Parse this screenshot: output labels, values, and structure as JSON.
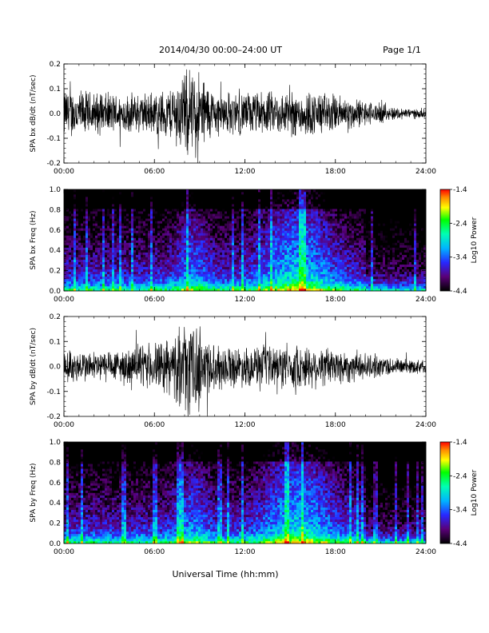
{
  "header": {
    "title": "2014/04/30  00:00–24:00 UT",
    "page": "Page 1/1"
  },
  "footer": {
    "xlabel": "Universal Time (hh:mm)"
  },
  "chart_data": [
    {
      "type": "line",
      "ylabel": "SPA bx dB/dt (nT/sec)",
      "x_ticks": [
        "00:00",
        "06:00",
        "12:00",
        "18:00",
        "24:00"
      ],
      "xlim": [
        0,
        24
      ],
      "y_ticks": [
        "0.2",
        "0.1",
        "0.0",
        "-0.1",
        "-0.2"
      ],
      "ylim": [
        -0.2,
        0.2
      ],
      "envelope_hours": [
        0,
        2,
        4,
        6,
        7,
        8,
        8.5,
        9,
        9.5,
        10,
        12,
        14,
        16,
        18,
        20,
        22,
        24
      ],
      "envelope_amplitude": [
        0.12,
        0.1,
        0.09,
        0.1,
        0.12,
        0.2,
        0.2,
        0.2,
        0.15,
        0.1,
        0.1,
        0.1,
        0.11,
        0.09,
        0.06,
        0.03,
        0.02
      ]
    },
    {
      "type": "heatmap",
      "ylabel": "SPA bx Freq (Hz)",
      "x_ticks": [
        "00:00",
        "06:00",
        "12:00",
        "18:00",
        "24:00"
      ],
      "xlim": [
        0,
        24
      ],
      "y_ticks": [
        "1.0",
        "0.8",
        "0.6",
        "0.4",
        "0.2",
        "0.0"
      ],
      "ylim": [
        0,
        1
      ],
      "colorbar": {
        "label": "Log10 Power",
        "ticks": [
          "-1.4",
          "-2.4",
          "-3.4",
          "-4.4"
        ],
        "range": [
          -4.4,
          -1.4
        ]
      }
    },
    {
      "type": "line",
      "ylabel": "SPA by dB/dt (nT/sec)",
      "x_ticks": [
        "00:00",
        "06:00",
        "12:00",
        "18:00",
        "24:00"
      ],
      "xlim": [
        0,
        24
      ],
      "y_ticks": [
        "0.2",
        "0.1",
        "0.0",
        "-0.1",
        "-0.2"
      ],
      "ylim": [
        -0.2,
        0.2
      ],
      "envelope_hours": [
        0,
        2,
        4,
        6,
        7,
        8,
        8.5,
        9,
        9.5,
        10,
        12,
        14,
        16,
        18,
        20,
        22,
        24
      ],
      "envelope_amplitude": [
        0.08,
        0.07,
        0.08,
        0.11,
        0.13,
        0.2,
        0.2,
        0.2,
        0.15,
        0.1,
        0.09,
        0.1,
        0.1,
        0.09,
        0.06,
        0.04,
        0.03
      ]
    },
    {
      "type": "heatmap",
      "ylabel": "SPA by Freq (Hz)",
      "x_ticks": [
        "00:00",
        "06:00",
        "12:00",
        "18:00",
        "24:00"
      ],
      "xlim": [
        0,
        24
      ],
      "y_ticks": [
        "1.0",
        "0.8",
        "0.6",
        "0.4",
        "0.2",
        "0.0"
      ],
      "ylim": [
        0,
        1
      ],
      "colorbar": {
        "label": "Log10 Power",
        "ticks": [
          "-1.4",
          "-2.4",
          "-3.4",
          "-4.4"
        ],
        "range": [
          -4.4,
          -1.4
        ]
      }
    }
  ]
}
